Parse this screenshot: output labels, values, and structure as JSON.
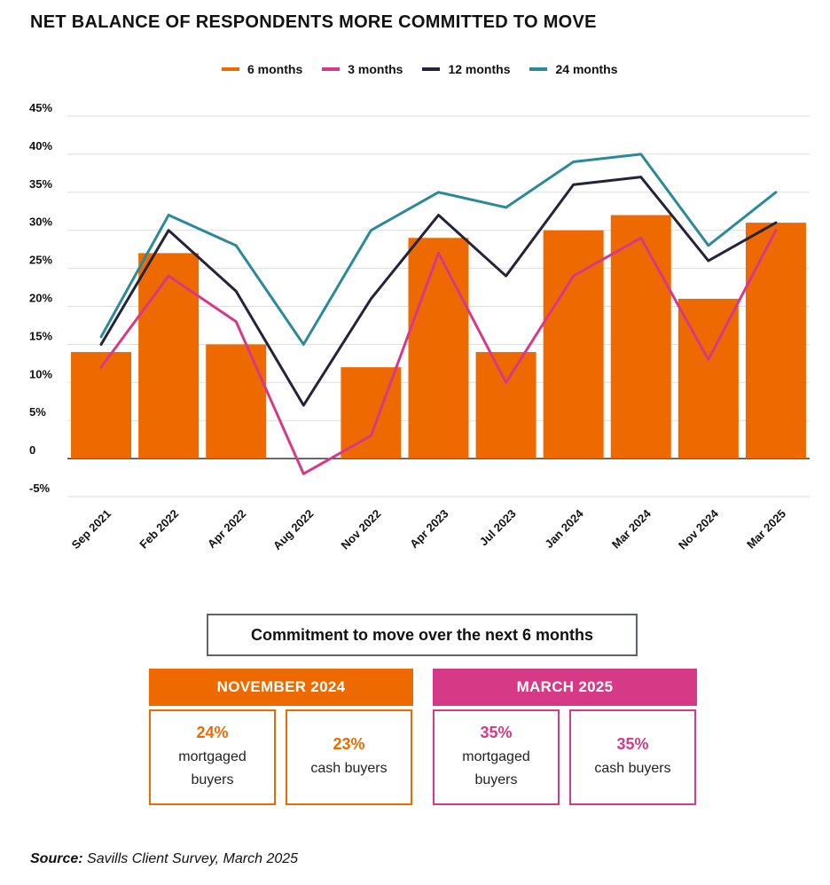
{
  "title": "NET BALANCE OF RESPONDENTS MORE COMMITTED TO MOVE",
  "colors": {
    "orange": "#ee6a00",
    "magenta": "#d63a86",
    "navy": "#23233a",
    "teal": "#2a8a98",
    "grid": "#dddddd",
    "box_border": "#5e6470"
  },
  "chart_data": {
    "type": "bar+line",
    "categories": [
      "Sep 2021",
      "Feb 2022",
      "Apr 2022",
      "Aug 2022",
      "Nov 2022",
      "Apr 2023",
      "Jul 2023",
      "Jan 2024",
      "Mar 2024",
      "Nov 2024",
      "Mar 2025"
    ],
    "bars": {
      "name": "6 months",
      "color": "#ee6a00",
      "values": [
        14,
        27,
        15,
        null,
        12,
        29,
        14,
        30,
        32,
        21,
        31
      ]
    },
    "series": [
      {
        "name": "3 months",
        "color": "#d63a86",
        "values": [
          12,
          24,
          18,
          -2,
          3,
          27,
          10,
          24,
          29,
          13,
          30
        ]
      },
      {
        "name": "12 months",
        "color": "#23233a",
        "values": [
          15,
          30,
          22,
          7,
          21,
          32,
          24,
          36,
          37,
          26,
          31
        ]
      },
      {
        "name": "24 months",
        "color": "#2a8a98",
        "values": [
          16,
          32,
          28,
          15,
          30,
          35,
          33,
          39,
          40,
          28,
          35
        ]
      }
    ],
    "yticks": [
      "45%",
      "40%",
      "35%",
      "30%",
      "25%",
      "20%",
      "15%",
      "10%",
      "5%",
      "0",
      "-5%"
    ],
    "ylim": [
      -5,
      45
    ],
    "grid": true,
    "legend": "top-center"
  },
  "legend": [
    {
      "label": "6 months",
      "color": "#ee6a00"
    },
    {
      "label": "3 months",
      "color": "#d63a86"
    },
    {
      "label": "12 months",
      "color": "#23233a"
    },
    {
      "label": "24 months",
      "color": "#2a8a98"
    }
  ],
  "panel": {
    "title": "Commitment to move over the next 6 months",
    "periods": [
      {
        "header": "NOVEMBER 2024",
        "color": "#ee6a00",
        "stats": [
          {
            "value": "24%",
            "label": "mortgaged buyers"
          },
          {
            "value": "23%",
            "label": "cash buyers"
          }
        ]
      },
      {
        "header": "MARCH 2025",
        "color": "#d63a86",
        "stats": [
          {
            "value": "35%",
            "label": "mortgaged buyers"
          },
          {
            "value": "35%",
            "label": "cash buyers"
          }
        ]
      }
    ]
  },
  "source": {
    "prefix": "Source:",
    "text": " Savills Client Survey, March 2025"
  }
}
